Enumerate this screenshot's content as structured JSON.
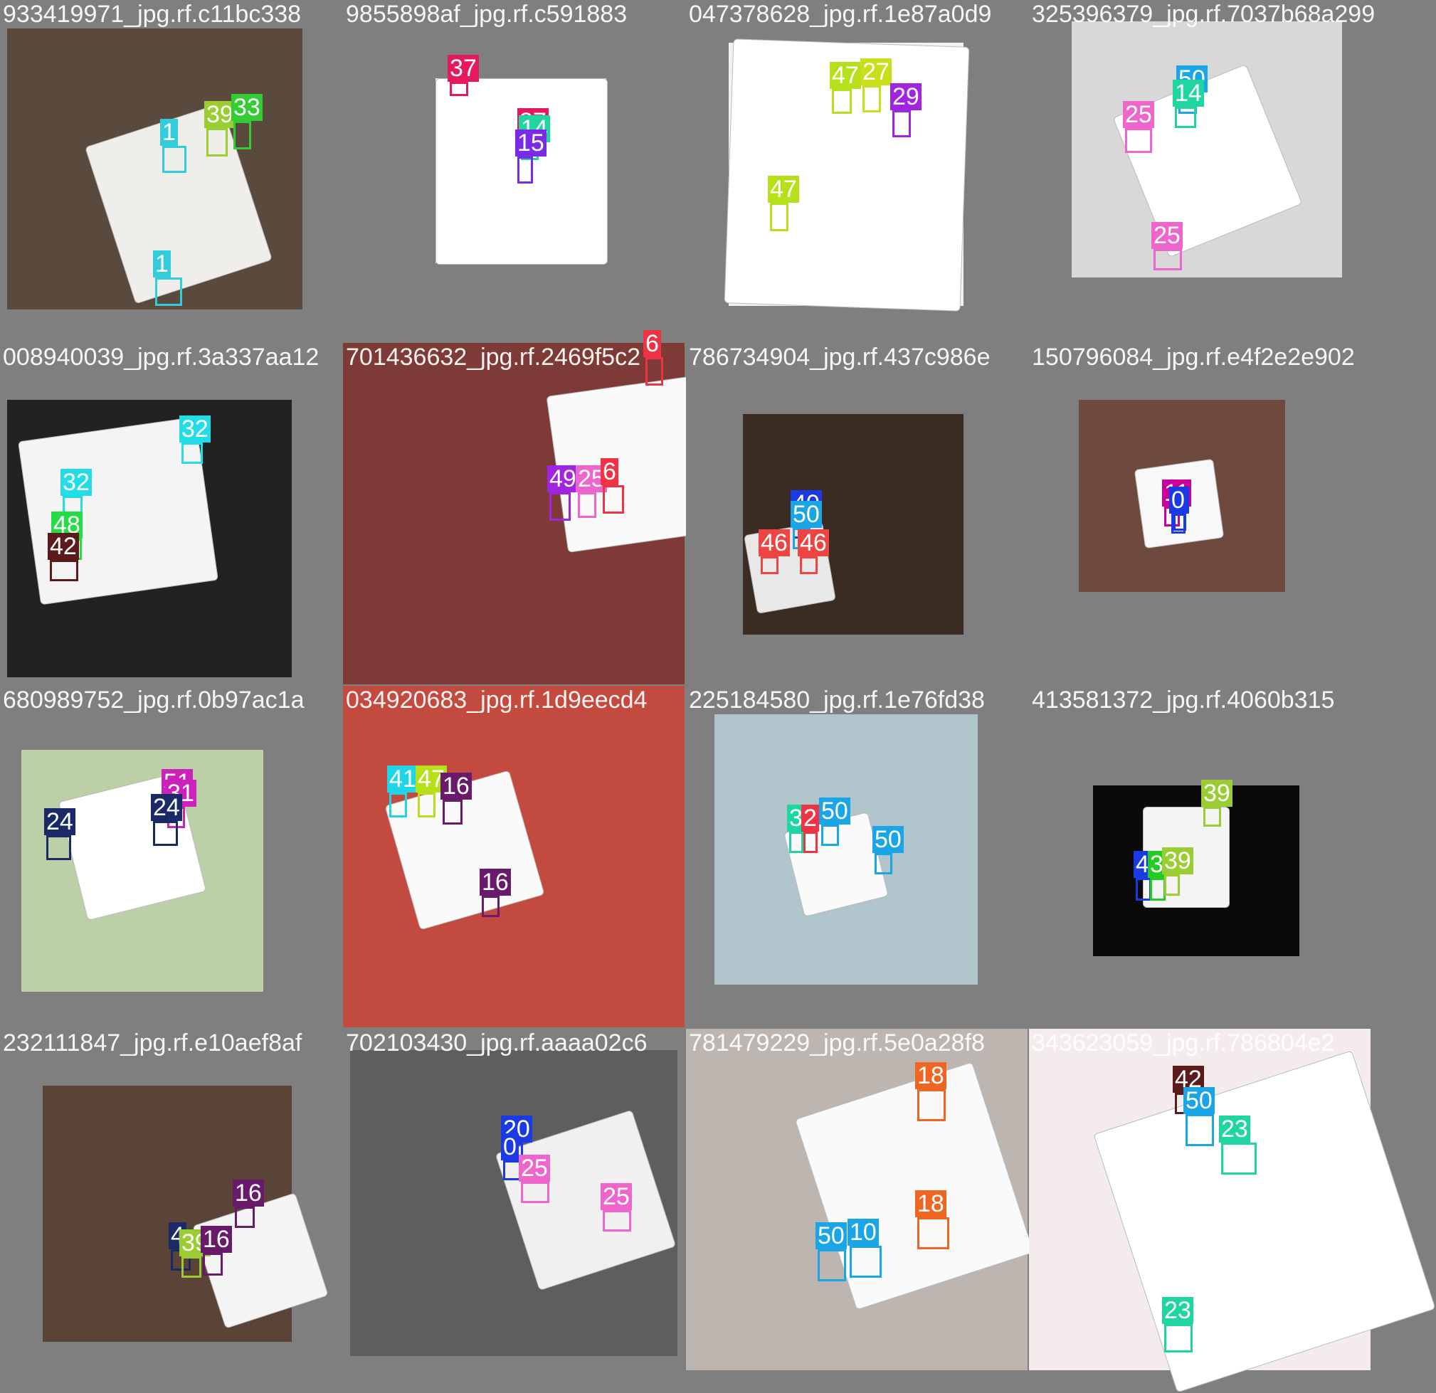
{
  "tiles": [
    {
      "title": "933419971_jpg.rf.c11bc338",
      "bg": "#5a4a3e",
      "card": "#f0eeea",
      "dets": [
        {
          "cls": "39",
          "color": "#9acd32"
        },
        {
          "cls": "33",
          "color": "#33cc33"
        },
        {
          "cls": "1",
          "color": "#33ccdd"
        },
        {
          "cls": "1",
          "color": "#33ccdd"
        }
      ]
    },
    {
      "title": "9855898af_jpg.rf.c591883",
      "bg": "#ececec",
      "card": "#ffffff",
      "dets": [
        {
          "cls": "37",
          "color": "#e6195f"
        },
        {
          "cls": "37",
          "color": "#e6195f"
        },
        {
          "cls": "14",
          "color": "#1fd6a0"
        },
        {
          "cls": "15",
          "color": "#7a2be6"
        }
      ]
    },
    {
      "title": "047378628_jpg.rf.1e87a0d9",
      "bg": "#f2f2ec",
      "card": "#ffffff",
      "dets": [
        {
          "cls": "47",
          "color": "#b6e01a"
        },
        {
          "cls": "27",
          "color": "#c7e01a"
        },
        {
          "cls": "29",
          "color": "#a024e0"
        },
        {
          "cls": "47",
          "color": "#b6e01a"
        }
      ]
    },
    {
      "title": "325396379_jpg.rf.7037b68a299",
      "bg": "#d8d8d8",
      "card": "#ffffff",
      "dets": [
        {
          "cls": "50",
          "color": "#1aa6e6"
        },
        {
          "cls": "14",
          "color": "#1fd6a0"
        },
        {
          "cls": "25",
          "color": "#ee66cc"
        },
        {
          "cls": "25",
          "color": "#ee66cc"
        }
      ]
    },
    {
      "title": "008940039_jpg.rf.3a337aa12",
      "bg": "#222222",
      "card": "#f4f4f4",
      "dets": [
        {
          "cls": "32",
          "color": "#22dde6"
        },
        {
          "cls": "32",
          "color": "#22dde6"
        },
        {
          "cls": "48",
          "color": "#22dd44"
        },
        {
          "cls": "42",
          "color": "#5c1a1a"
        }
      ]
    },
    {
      "title": "701436632_jpg.rf.2469f5c2",
      "bg": "#7e3a36",
      "card": "#fafafa",
      "dets": [
        {
          "cls": "6",
          "color": "#ee3344"
        },
        {
          "cls": "49",
          "color": "#a024e0"
        },
        {
          "cls": "25",
          "color": "#ee66cc"
        },
        {
          "cls": "6",
          "color": "#ee3344"
        }
      ]
    },
    {
      "title": "786734904_jpg.rf.437c986e",
      "bg": "#3a2c22",
      "card": "#e8e8e8",
      "dets": [
        {
          "cls": "40",
          "color": "#1a3ae6"
        },
        {
          "cls": "50",
          "color": "#1aa6e6"
        },
        {
          "cls": "46",
          "color": "#ee4444"
        },
        {
          "cls": "46",
          "color": "#ee4444"
        }
      ]
    },
    {
      "title": "150796084_jpg.rf.e4f2e2e902",
      "bg": "#6e4a3e",
      "card": "#f8f8f8",
      "dets": [
        {
          "cls": "11",
          "color": "#cc0099"
        },
        {
          "cls": "0",
          "color": "#1a3ae6"
        },
        {
          "cls": "0",
          "color": "#1a3ae6"
        }
      ]
    },
    {
      "title": "680989752_jpg.rf.0b97ac1a",
      "bg": "#bcd0a8",
      "card": "#ffffff",
      "dets": [
        {
          "cls": "51",
          "color": "#cc22bb"
        },
        {
          "cls": "31",
          "color": "#cc22bb"
        },
        {
          "cls": "24",
          "color": "#1a2a66"
        },
        {
          "cls": "24",
          "color": "#1a2a66"
        }
      ]
    },
    {
      "title": "034920683_jpg.rf.1d9eecd4",
      "bg": "#c24a3e",
      "card": "#fafafa",
      "dets": [
        {
          "cls": "41",
          "color": "#1fd6e6"
        },
        {
          "cls": "47",
          "color": "#b6e01a"
        },
        {
          "cls": "16",
          "color": "#6a1a6a"
        },
        {
          "cls": "16",
          "color": "#6a1a6a"
        }
      ]
    },
    {
      "title": "225184580_jpg.rf.1e76fd38",
      "bg": "#b0c4cc",
      "card": "#fafafa",
      "dets": [
        {
          "cls": "3",
          "color": "#1fd6a0"
        },
        {
          "cls": "2",
          "color": "#ee3344"
        },
        {
          "cls": "50",
          "color": "#1aa6e6"
        },
        {
          "cls": "50",
          "color": "#1aa6e6"
        }
      ]
    },
    {
      "title": "413581372_jpg.rf.4060b315",
      "bg": "#0a0a0a",
      "card": "#f4f4f4",
      "dets": [
        {
          "cls": "39",
          "color": "#9acd32"
        },
        {
          "cls": "4",
          "color": "#1a3ae6"
        },
        {
          "cls": "3",
          "color": "#22cc22"
        },
        {
          "cls": "39",
          "color": "#9acd32"
        }
      ]
    },
    {
      "title": "232111847_jpg.rf.e10aef8af",
      "bg": "#5a4438",
      "card": "#f4f4f4",
      "dets": [
        {
          "cls": "16",
          "color": "#6a1a6a"
        },
        {
          "cls": "4",
          "color": "#1a2a66"
        },
        {
          "cls": "39",
          "color": "#9acd32"
        },
        {
          "cls": "16",
          "color": "#6a1a6a"
        }
      ]
    },
    {
      "title": "702103430_jpg.rf.aaaa02c6",
      "bg": "#5e5e5e",
      "card": "#f0f0f0",
      "dets": [
        {
          "cls": "20",
          "color": "#1a3ae6"
        },
        {
          "cls": "0",
          "color": "#1a3ae6"
        },
        {
          "cls": "25",
          "color": "#ee66cc"
        },
        {
          "cls": "25",
          "color": "#ee66cc"
        }
      ]
    },
    {
      "title": "781479229_jpg.rf.5e0a28f8",
      "bg": "#bdb6b0",
      "card": "#fafafa",
      "dets": [
        {
          "cls": "18",
          "color": "#ee6622"
        },
        {
          "cls": "18",
          "color": "#ee6622"
        },
        {
          "cls": "50",
          "color": "#1aa6e6"
        },
        {
          "cls": "10",
          "color": "#1aa6e6"
        }
      ]
    },
    {
      "title": "343623059_jpg.rf.786804e2",
      "bg": "#f4ecec",
      "card": "#ffffff",
      "dets": [
        {
          "cls": "42",
          "color": "#5c1a1a"
        },
        {
          "cls": "50",
          "color": "#1aa6e6"
        },
        {
          "cls": "23",
          "color": "#1fd6a0"
        },
        {
          "cls": "23",
          "color": "#1fd6a0"
        }
      ]
    }
  ]
}
